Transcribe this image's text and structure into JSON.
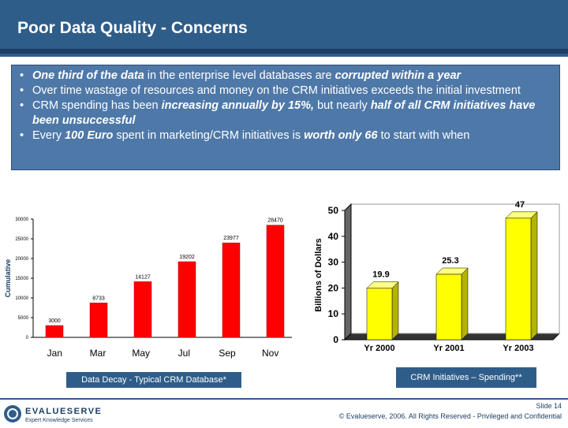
{
  "title": "Poor Data Quality - Concerns",
  "bullets": [
    {
      "parts": [
        {
          "t": "One third of the data",
          "s": "bi"
        },
        {
          "t": " in the enterprise level databases are ",
          "s": "n"
        },
        {
          "t": "corrupted within a year",
          "s": "bi"
        }
      ]
    },
    {
      "parts": [
        {
          "t": "Over time wastage of resources and money on the CRM initiatives exceeds the initial investment",
          "s": "n"
        }
      ]
    },
    {
      "parts": [
        {
          "t": "CRM spending has been ",
          "s": "n"
        },
        {
          "t": "increasing annually by 15%,",
          "s": "bi"
        },
        {
          "t": " but nearly ",
          "s": "n"
        },
        {
          "t": "half of all CRM initiatives have been unsuccessful",
          "s": "bi"
        }
      ]
    },
    {
      "parts": [
        {
          "t": "Every ",
          "s": "n"
        },
        {
          "t": "100 Euro",
          "s": "bi"
        },
        {
          "t": " spent in marketing/CRM initiatives is ",
          "s": "n"
        },
        {
          "t": "worth only 66",
          "s": "bi"
        },
        {
          "t": " to start with when",
          "s": "n"
        }
      ]
    }
  ],
  "chart_data": [
    {
      "type": "bar",
      "categories": [
        "Jan",
        "Mar",
        "May",
        "Jul",
        "Sep",
        "Nov"
      ],
      "values": [
        3000,
        8733,
        14127,
        19202,
        23977,
        28470
      ],
      "value_labels": [
        "3000",
        "8733",
        "14127",
        "19202",
        "23977",
        "28470"
      ],
      "ylabel": "Cumulative",
      "yticks": [
        "0",
        "5000",
        "10000",
        "15000",
        "20000",
        "25000",
        "30000"
      ],
      "ylim": [
        0,
        30000
      ],
      "bar_color": "#ff0000",
      "caption": "Data Decay - Typical CRM Database*"
    },
    {
      "type": "bar",
      "categories": [
        "Yr 2000",
        "Yr 2001",
        "Yr 2003"
      ],
      "values": [
        19.9,
        25.3,
        47
      ],
      "value_labels": [
        "19.9",
        "25.3",
        "47"
      ],
      "ylabel": "Billions of Dollars",
      "yticks": [
        "0",
        "10",
        "20",
        "30",
        "40",
        "50"
      ],
      "ylim": [
        0,
        50
      ],
      "bar_color": "#ffff00",
      "caption": "CRM Initiatives – Spending**"
    }
  ],
  "footer": {
    "slide": "Slide 14",
    "copyright": "© Evalueserve, 2006. All Rights Reserved - Privileged and Confidential",
    "logo_text": "EVALUESERVE",
    "logo_tagline": "Expert Knowledge Services"
  }
}
